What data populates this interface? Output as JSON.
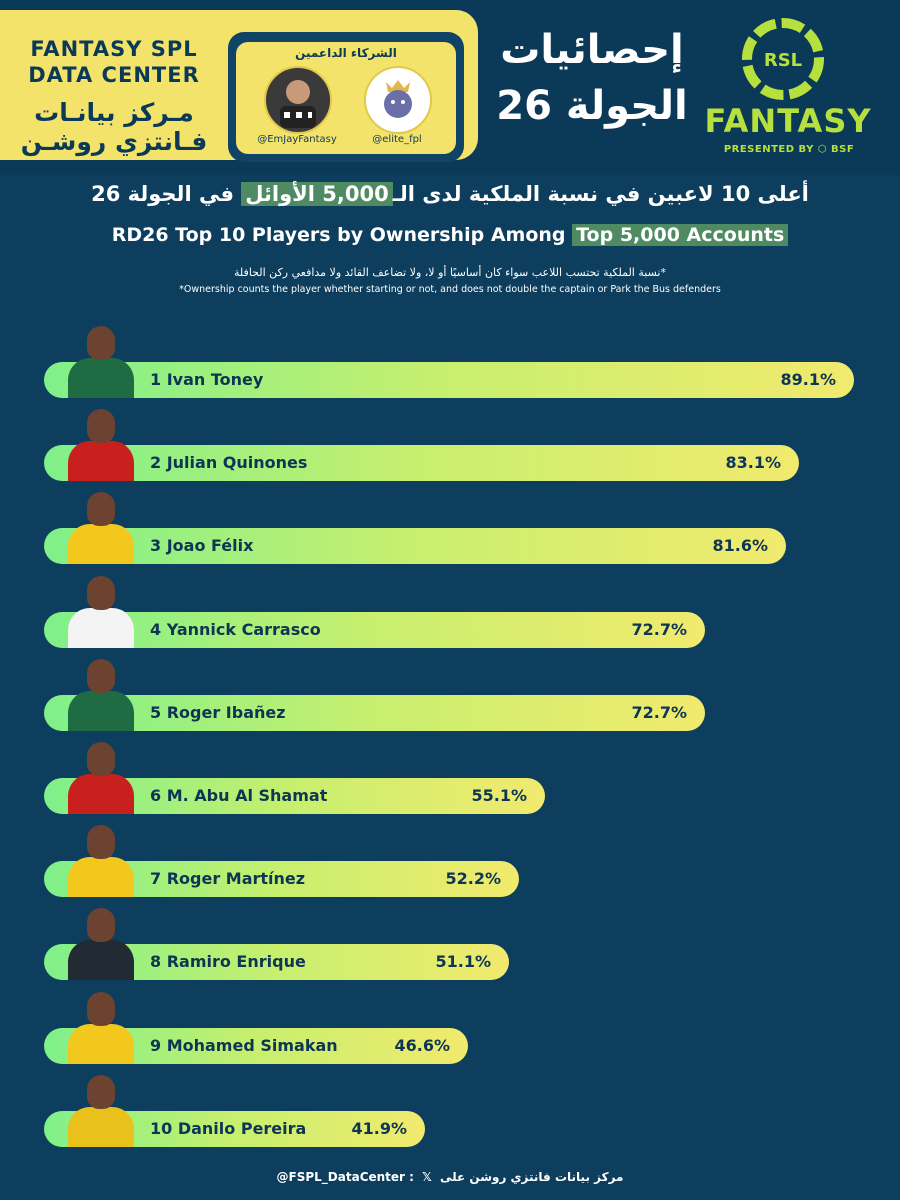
{
  "header": {
    "brand_en_line1": "FANTASY SPL",
    "brand_en_line2": "DATA CENTER",
    "brand_ar_line1": "مـركز بيانـات",
    "brand_ar_line2": "فـانتزي روشـن",
    "sponsors_title": "الشركاء الداعمين",
    "sponsor_1_handle": "@EmJayFantasy",
    "sponsor_2_handle": "@elite_fpl",
    "round_title_line1": "إحصائيات",
    "round_title_line2": "الجولة 26",
    "logo_text": "RSL",
    "fantasy_word": "FANTASY",
    "presented_by": "PRESENTED BY ⬡ BSF"
  },
  "titles": {
    "ar_before": "أعلى 10 لاعبين في نسبة الملكية لدى الـ",
    "ar_highlight": "5,000 الأوائل",
    "ar_after": " في الجولة 26",
    "en_before": "RD26 Top 10 Players by Ownership Among ",
    "en_highlight": "Top 5,000 Accounts",
    "note_ar": "*نسبة الملكية تحتسب اللاعب سواء كان أساسيًا أو لا، ولا تضاعف القائد ولا مدافعي ركن الحافلة",
    "note_en": "*Ownership counts the player whether starting or not, and does not double the captain or Park the Bus defenders"
  },
  "chart_data": {
    "type": "bar",
    "orientation": "horizontal",
    "title": "RD26 Top 10 Players by Ownership Among Top 5,000 Accounts",
    "unit": "%",
    "categories": [
      "1   Ivan Toney",
      "2 Julian Quinones",
      "3 Joao Félix",
      "4 Yannick Carrasco",
      "5 Roger Ibañez",
      "6 M. Abu Al Shamat",
      "7 Roger Martínez",
      "8 Ramiro Enrique",
      "9 Mohamed Simakan",
      "10 Danilo Pereira"
    ],
    "values": [
      89.1,
      83.1,
      81.6,
      72.7,
      72.7,
      55.1,
      52.2,
      51.1,
      46.6,
      41.9
    ],
    "value_labels": [
      "89.1%",
      "83.1%",
      "81.6%",
      "72.7%",
      "72.7%",
      "55.1%",
      "52.2%",
      "51.1%",
      "46.6%",
      "41.9%"
    ],
    "shirt_colors": [
      "#1f6b43",
      "#c8201c",
      "#f2c81f",
      "#f4f4f4",
      "#1f6b43",
      "#c8201c",
      "#f2c81f",
      "#222a33",
      "#f2c81f",
      "#e8c21a"
    ],
    "xlim": [
      0,
      100
    ],
    "grid": false,
    "legend": "none"
  },
  "footer": {
    "text_ar": "مركز بيانات فانتزي روشن على",
    "x_icon": "𝕏",
    "handle": "@FSPL_DataCenter :"
  },
  "colors": {
    "background": "#0e3e5e",
    "accent_yellow": "#f3e36b",
    "accent_green": "#b6e03d",
    "bar_start": "#7ff08a",
    "bar_end": "#f1ea6e",
    "highlight": "#4e8a62"
  }
}
